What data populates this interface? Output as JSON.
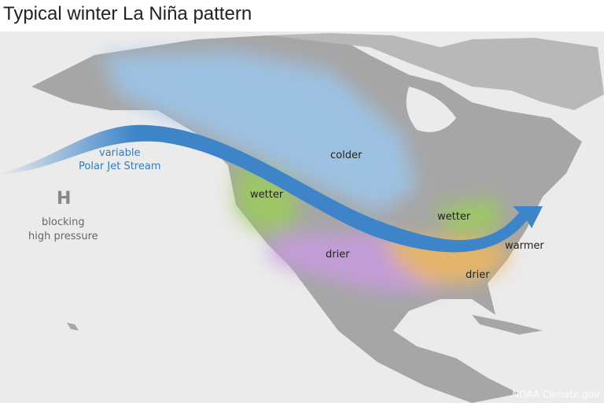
{
  "title": "Typical winter La Niña pattern",
  "jet_stream": {
    "line1": "variable",
    "line2": "Polar Jet Stream"
  },
  "high_pressure": {
    "symbol": "H",
    "line1": "blocking",
    "line2": "high pressure"
  },
  "regions": [
    {
      "label": "colder",
      "color": "#9cc6ec"
    },
    {
      "label": "wetter",
      "color": "#9ccc5a"
    },
    {
      "label": "wetter",
      "color": "#9ccc5a"
    },
    {
      "label": "drier",
      "color": "#c89be0"
    },
    {
      "label": "drier",
      "color": "#c89be0"
    },
    {
      "label": "warmer",
      "color": "#f0b860"
    }
  ],
  "credit": "NOAA Climate.gov",
  "colors": {
    "ocean": "#ebebeb",
    "land": "#a9a9a9",
    "jet": "#3d84c8"
  }
}
